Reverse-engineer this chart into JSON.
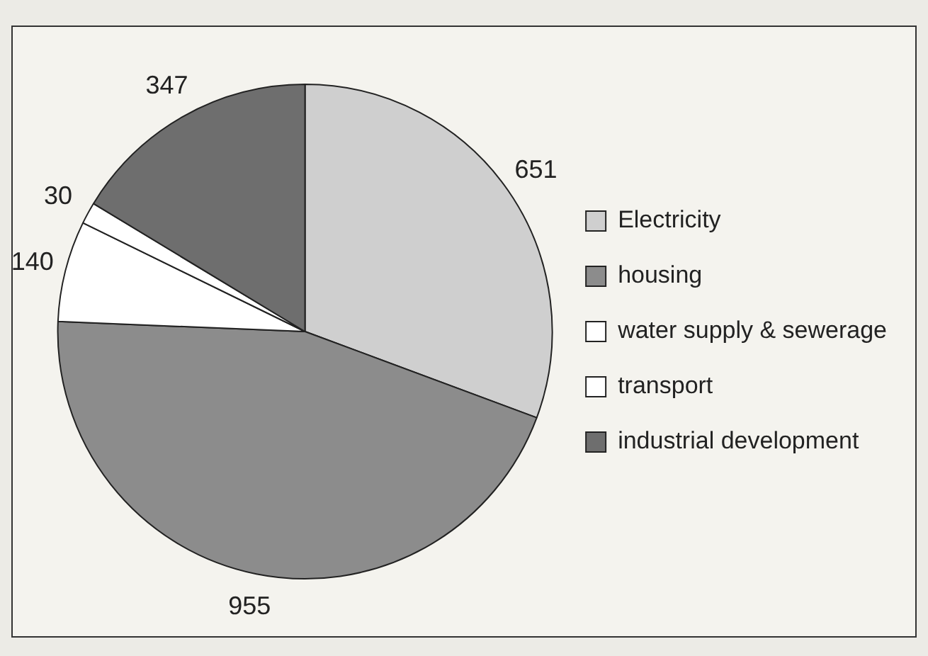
{
  "chart_data": {
    "type": "pie",
    "categories": [
      "Electricity",
      "housing",
      "water supply & sewerage",
      "transport",
      "industrial development"
    ],
    "values": [
      651,
      955,
      140,
      30,
      347
    ],
    "colors": [
      "#cfcfcf",
      "#8c8c8c",
      "#ffffff",
      "#ffffff",
      "#6e6e6e"
    ],
    "data_labels": true,
    "legend": "right"
  }
}
